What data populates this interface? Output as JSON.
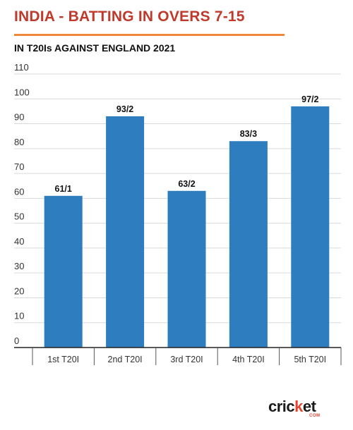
{
  "header": {
    "title": "INDIA - BATTING IN OVERS 7-15",
    "subtitle": "IN T20Is AGAINST ENGLAND 2021"
  },
  "colors": {
    "title": "#c0392b",
    "rule": "#f0883a",
    "bar": "#2e7dbf",
    "grid": "#d9d9d9",
    "text": "#333333"
  },
  "logo": {
    "word_a": "cric",
    "word_b": "k",
    "word_c": "et",
    "sub": "COM"
  },
  "chart_data": {
    "type": "bar",
    "title": "INDIA - BATTING IN OVERS 7-15",
    "subtitle": "IN T20Is AGAINST ENGLAND 2021",
    "categories": [
      "1st T20I",
      "2nd T20I",
      "3rd T20I",
      "4th T20I",
      "5th T20I"
    ],
    "values": [
      61,
      93,
      63,
      83,
      97
    ],
    "data_labels": [
      "61/1",
      "93/2",
      "63/2",
      "83/3",
      "97/2"
    ],
    "yticks": [
      0,
      10,
      20,
      30,
      40,
      50,
      60,
      70,
      80,
      90,
      100,
      110
    ],
    "ylim": [
      0,
      110
    ],
    "xlabel": "",
    "ylabel": "",
    "grid": true,
    "legend": "none"
  }
}
